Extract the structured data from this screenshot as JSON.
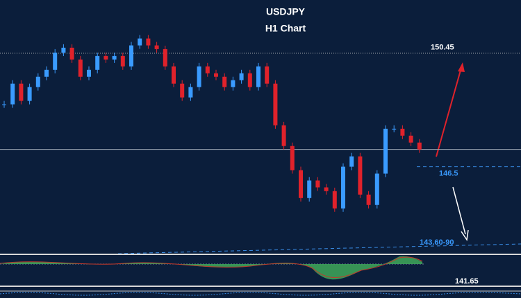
{
  "chart_data": {
    "type": "candlestick",
    "title": "USDJPY",
    "subtitle": "H1 Chart",
    "ylim": [
      143.5,
      152.3
    ],
    "closes": [
      148.67,
      149.39,
      148.79,
      149.27,
      149.63,
      149.87,
      150.47,
      150.64,
      150.23,
      149.63,
      149.87,
      150.35,
      150.23,
      150.35,
      149.99,
      150.72,
      150.96,
      150.72,
      150.59,
      149.99,
      149.39,
      148.91,
      149.27,
      149.99,
      149.75,
      149.63,
      149.27,
      149.51,
      149.75,
      149.27,
      149.99,
      149.39,
      147.94,
      147.22,
      146.38,
      145.41,
      146.02,
      145.78,
      145.65,
      145.05,
      146.5,
      146.86,
      145.53,
      145.17,
      146.26,
      147.82,
      147.82,
      147.58,
      147.34,
      147.1
    ],
    "up_color": "#3a9bff",
    "down_color": "#e0222b",
    "resistance": 150.45,
    "support": 146.5,
    "target_label": "143.60-90",
    "indicator_label": "141.65"
  }
}
